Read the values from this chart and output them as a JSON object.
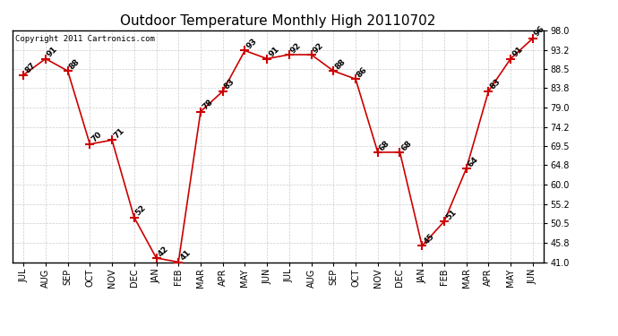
{
  "title": "Outdoor Temperature Monthly High 20110702",
  "copyright": "Copyright 2011 Cartronics.com",
  "categories": [
    "JUL",
    "AUG",
    "SEP",
    "OCT",
    "NOV",
    "DEC",
    "JAN",
    "FEB",
    "MAR",
    "APR",
    "MAY",
    "JUN",
    "JUL",
    "AUG",
    "SEP",
    "OCT",
    "NOV",
    "DEC",
    "JAN",
    "FEB",
    "MAR",
    "APR",
    "MAY",
    "JUN"
  ],
  "values": [
    87,
    91,
    88,
    70,
    71,
    52,
    42,
    41,
    78,
    83,
    93,
    91,
    92,
    92,
    88,
    86,
    68,
    68,
    45,
    51,
    64,
    83,
    91,
    96
  ],
  "ylim": [
    41.0,
    98.0
  ],
  "yticks": [
    41.0,
    45.8,
    50.5,
    55.2,
    60.0,
    64.8,
    69.5,
    74.2,
    79.0,
    83.8,
    88.5,
    93.2,
    98.0
  ],
  "line_color": "#cc0000",
  "marker": "+",
  "marker_color": "#cc0000",
  "bg_color": "#ffffff",
  "grid_color": "#cccccc",
  "title_fontsize": 11,
  "label_fontsize": 7,
  "annotation_fontsize": 6.5,
  "copyright_fontsize": 6.5
}
